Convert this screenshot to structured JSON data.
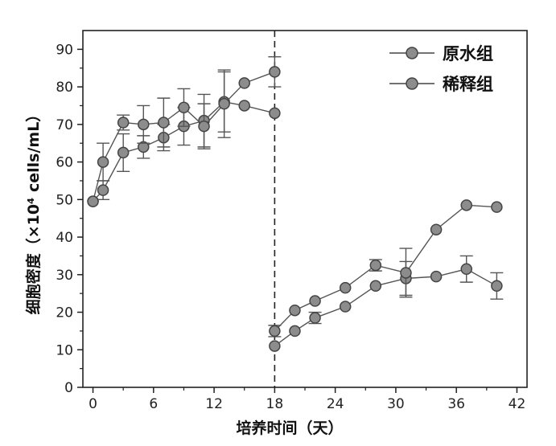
{
  "chart_data": {
    "type": "line",
    "xlabel": "培养时间（天）",
    "ylabel": "细胞密度（×10⁴ cells/mL）",
    "xlim": [
      -1,
      43
    ],
    "ylim": [
      0,
      95
    ],
    "xticks": [
      0,
      6,
      12,
      18,
      24,
      30,
      36,
      42
    ],
    "yticks": [
      0,
      10,
      20,
      30,
      40,
      50,
      60,
      70,
      80,
      90
    ],
    "xtick_labels": [
      "0",
      "6",
      "12",
      "18",
      "24",
      "30",
      "36",
      "42"
    ],
    "ytick_labels": [
      "0",
      "10",
      "20",
      "30",
      "40",
      "50",
      "60",
      "70",
      "80",
      "90"
    ],
    "vline_x": 18,
    "grid": false,
    "legend_position": "top-right",
    "series": [
      {
        "name": "原水组",
        "points": [
          {
            "x": 0,
            "y": 49.5,
            "err": 0
          },
          {
            "x": 1,
            "y": 52.5,
            "err": 2.5
          },
          {
            "x": 3,
            "y": 62.5,
            "err": 5
          },
          {
            "x": 5,
            "y": 64,
            "err": 3
          },
          {
            "x": 7,
            "y": 66.5,
            "err": 3.5
          },
          {
            "x": 9,
            "y": 69.5,
            "err": 5
          },
          {
            "x": 11,
            "y": 71,
            "err": 7
          },
          {
            "x": 13,
            "y": 76,
            "err": 8
          },
          {
            "x": 15,
            "y": 75,
            "err": 0
          },
          {
            "x": 18,
            "y": 73,
            "err": 0
          },
          {
            "x": 18,
            "y": 11,
            "err": 0
          },
          {
            "x": 20,
            "y": 15,
            "err": 0
          },
          {
            "x": 22,
            "y": 18.5,
            "err": 1.5
          },
          {
            "x": 25,
            "y": 21.5,
            "err": 0
          },
          {
            "x": 28,
            "y": 27,
            "err": 0
          },
          {
            "x": 31,
            "y": 29,
            "err": 4.5
          },
          {
            "x": 34,
            "y": 29.5,
            "err": 0
          },
          {
            "x": 37,
            "y": 31.5,
            "err": 3.5
          },
          {
            "x": 40,
            "y": 27,
            "err": 3.5
          }
        ]
      },
      {
        "name": "稀释组",
        "points": [
          {
            "x": 0,
            "y": 49.5,
            "err": 0
          },
          {
            "x": 1,
            "y": 60,
            "err": 5
          },
          {
            "x": 3,
            "y": 70.5,
            "err": 2
          },
          {
            "x": 5,
            "y": 70,
            "err": 5
          },
          {
            "x": 7,
            "y": 70.5,
            "err": 6.5
          },
          {
            "x": 9,
            "y": 74.5,
            "err": 5
          },
          {
            "x": 11,
            "y": 69.5,
            "err": 6
          },
          {
            "x": 13,
            "y": 75.5,
            "err": 9
          },
          {
            "x": 15,
            "y": 81,
            "err": 0
          },
          {
            "x": 18,
            "y": 84,
            "err": 4
          },
          {
            "x": 18,
            "y": 15,
            "err": 1.5
          },
          {
            "x": 20,
            "y": 20.5,
            "err": 0
          },
          {
            "x": 22,
            "y": 23,
            "err": 0
          },
          {
            "x": 25,
            "y": 26.5,
            "err": 0
          },
          {
            "x": 28,
            "y": 32.5,
            "err": 1.5
          },
          {
            "x": 31,
            "y": 30.5,
            "err": 6.5
          },
          {
            "x": 34,
            "y": 42,
            "err": 0
          },
          {
            "x": 37,
            "y": 48.5,
            "err": 0
          },
          {
            "x": 40,
            "y": 48,
            "err": 0
          }
        ]
      }
    ]
  }
}
